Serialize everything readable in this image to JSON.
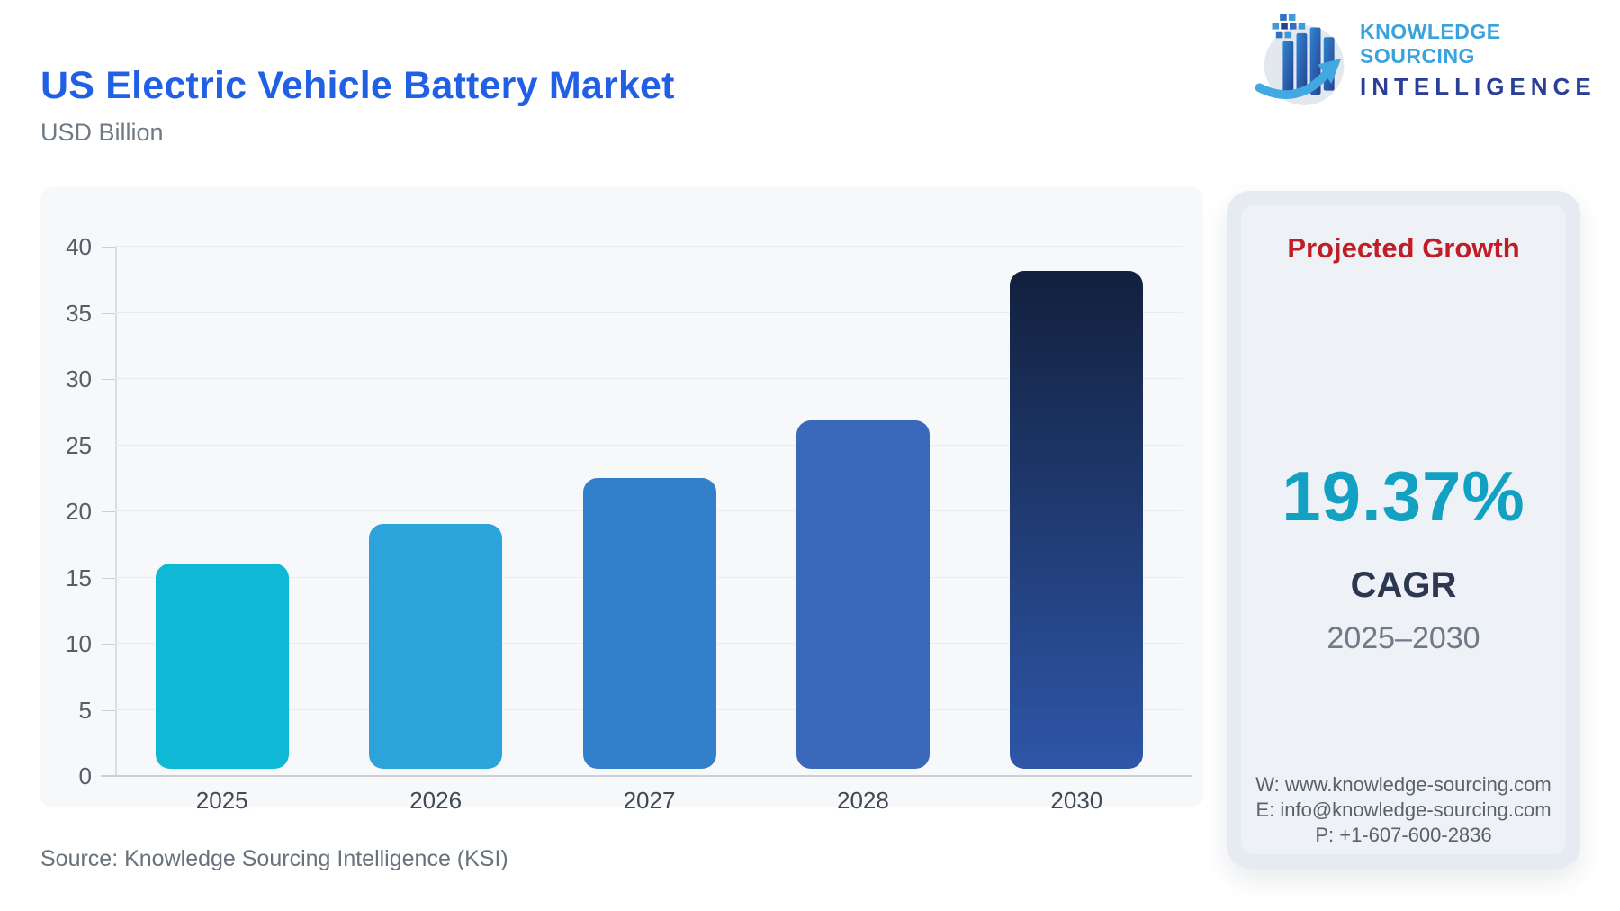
{
  "header": {
    "title": "US Electric Vehicle Battery Market",
    "subtitle": "USD Billion",
    "logo": {
      "line1": "KNOWLEDGE SOURCING",
      "line2": "INTELLIGENCE"
    }
  },
  "chart_data": {
    "type": "bar",
    "title": "US Electric Vehicle Battery Market",
    "ylabel": "USD Billion",
    "xlabel": "",
    "categories": [
      "2025",
      "2026",
      "2027",
      "2028",
      "2030"
    ],
    "values": [
      15.5,
      18.5,
      22,
      26.3,
      37.6
    ],
    "bar_colors": [
      "#0fb9d5",
      "#2da3db",
      "#3380ca",
      "#3b68bb",
      {
        "gradient_top": "#12203d",
        "gradient_bottom": "#2e56a8"
      }
    ],
    "ylim": [
      0,
      40
    ],
    "yticks": [
      0,
      5,
      10,
      15,
      20,
      25,
      30,
      35,
      40
    ],
    "grid": true,
    "legend": "none"
  },
  "panel": {
    "heading": "Projected Growth",
    "cagr_value": "19.37%",
    "cagr_label": "CAGR",
    "period": "2025–2030",
    "contacts": {
      "website": "W: www.knowledge-sourcing.com",
      "email": "E: info@knowledge-sourcing.com",
      "phone": "P: +1-607-600-2836"
    }
  },
  "footer": {
    "source": "Source: Knowledge Sourcing Intelligence (KSI)"
  },
  "colors": {
    "title_blue": "#2160e5",
    "subtitle_gray": "#6f7a85",
    "heading_red": "#c01e26",
    "teal_accent": "#12a1c2",
    "navy_text": "#2d3850",
    "period_gray": "#6f7987",
    "contacts_gray": "#59616d",
    "source_gray": "#68717d",
    "xlabel_gray": "#424954",
    "ytick_gray": "#565d68",
    "logo_light_blue": "#3aa2dd",
    "logo_dark_blue": "#2b3f96"
  }
}
